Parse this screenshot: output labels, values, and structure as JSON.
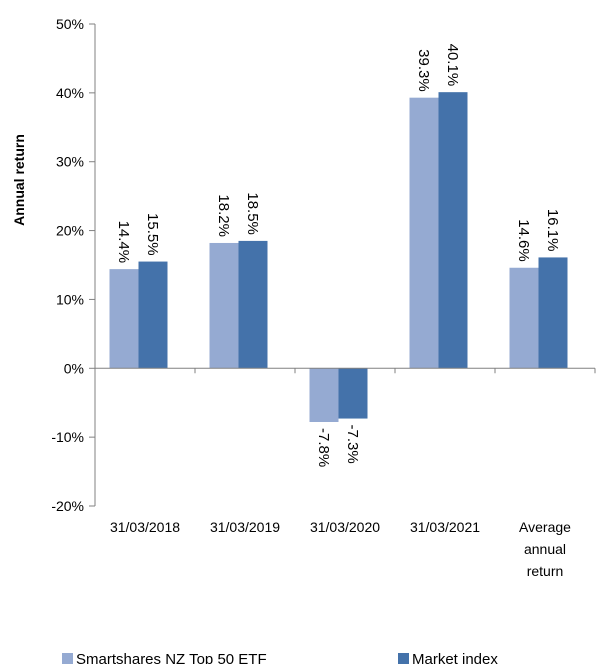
{
  "chart_data": {
    "type": "bar",
    "ylabel": "Annual return",
    "ylim": [
      -20,
      50
    ],
    "yticks": [
      -20,
      -10,
      0,
      10,
      20,
      30,
      40,
      50
    ],
    "ytick_labels": [
      "-20%",
      "-10%",
      "0%",
      "10%",
      "20%",
      "30%",
      "40%",
      "50%"
    ],
    "categories": [
      [
        "31/03/2018"
      ],
      [
        "31/03/2019"
      ],
      [
        "31/03/2020"
      ],
      [
        "31/03/2021"
      ],
      [
        "Average",
        "annual",
        "return"
      ]
    ],
    "series": [
      {
        "name": "Smartshares NZ Top 50 ETF",
        "color": "#95aad2",
        "values": [
          14.4,
          18.2,
          -7.8,
          39.3,
          14.6
        ],
        "labels": [
          "14.4%",
          "18.2%",
          "-7.8%",
          "39.3%",
          "14.6%"
        ]
      },
      {
        "name": "Market index",
        "color": "#4472aa",
        "values": [
          15.5,
          18.5,
          -7.3,
          40.1,
          16.1
        ],
        "labels": [
          "15.5%",
          "18.5%",
          "-7.3%",
          "40.1%",
          "16.1%"
        ]
      }
    ],
    "grid": false,
    "legend_position": "bottom"
  }
}
